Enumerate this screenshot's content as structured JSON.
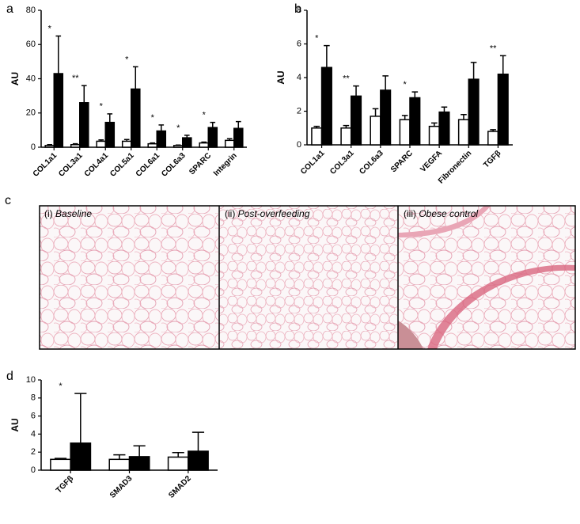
{
  "chart_data": [
    {
      "type": "bar",
      "panel": "a",
      "ylabel": "AU",
      "categories": [
        "COL1a1",
        "COL3a1",
        "COL4a1",
        "COL5a1",
        "COL6a1",
        "COL6a3",
        "SPARC",
        "Integrin"
      ],
      "series": [
        {
          "color": "#ffffff",
          "values": [
            1,
            1.5,
            3.5,
            3.5,
            2,
            1,
            2.5,
            4
          ],
          "errors": [
            0.5,
            0.5,
            0.8,
            1,
            0.5,
            0.3,
            0.5,
            1
          ]
        },
        {
          "color": "#000000",
          "values": [
            43,
            26,
            14.5,
            34,
            9.5,
            5.5,
            11.5,
            11
          ],
          "errors": [
            22,
            10,
            5,
            13,
            3.5,
            1.5,
            3,
            4
          ]
        }
      ],
      "significance": [
        "*",
        "**",
        "*",
        "*",
        "*",
        "*",
        "*",
        null
      ],
      "ylim": [
        0,
        80
      ],
      "yticks": [
        0,
        20,
        40,
        60,
        80
      ]
    },
    {
      "type": "bar",
      "panel": "b",
      "ylabel": "AU",
      "categories": [
        "COL1a1",
        "COL3a1",
        "COL6a3",
        "SPARC",
        "VEGFA",
        "Fibronectin",
        "TGFβ"
      ],
      "series": [
        {
          "color": "#ffffff",
          "values": [
            1.0,
            1.0,
            1.7,
            1.5,
            1.1,
            1.5,
            0.8
          ],
          "errors": [
            0.1,
            0.15,
            0.45,
            0.25,
            0.2,
            0.3,
            0.1
          ]
        },
        {
          "color": "#000000",
          "values": [
            4.6,
            2.9,
            3.25,
            2.8,
            1.95,
            3.9,
            4.2
          ],
          "errors": [
            1.3,
            0.6,
            0.85,
            0.35,
            0.3,
            1.0,
            1.1
          ]
        }
      ],
      "significance": [
        "*",
        "**",
        null,
        "*",
        null,
        null,
        "**"
      ],
      "ylim": [
        0,
        8
      ],
      "yticks": [
        0,
        2,
        4,
        6,
        8
      ]
    },
    {
      "type": "bar",
      "panel": "d",
      "ylabel": "AU",
      "categories": [
        "TGFβ",
        "SMAD3",
        "SMAD2"
      ],
      "series": [
        {
          "color": "#ffffff",
          "values": [
            1.2,
            1.2,
            1.45
          ],
          "errors": [
            0.1,
            0.5,
            0.5
          ]
        },
        {
          "color": "#000000",
          "values": [
            3.0,
            1.5,
            2.1
          ],
          "errors": [
            5.5,
            1.2,
            2.1
          ]
        }
      ],
      "significance": [
        "*",
        null,
        null
      ],
      "ylim": [
        0,
        10
      ],
      "yticks": [
        0,
        2,
        4,
        6,
        8,
        10
      ]
    }
  ],
  "panel_c": {
    "label": "c",
    "images": [
      {
        "numeral": "(i)",
        "caption": "Baseline"
      },
      {
        "numeral": "(ii)",
        "caption": "Post-overfeeding"
      },
      {
        "numeral": "(iii)",
        "caption": "Obese control"
      }
    ]
  }
}
